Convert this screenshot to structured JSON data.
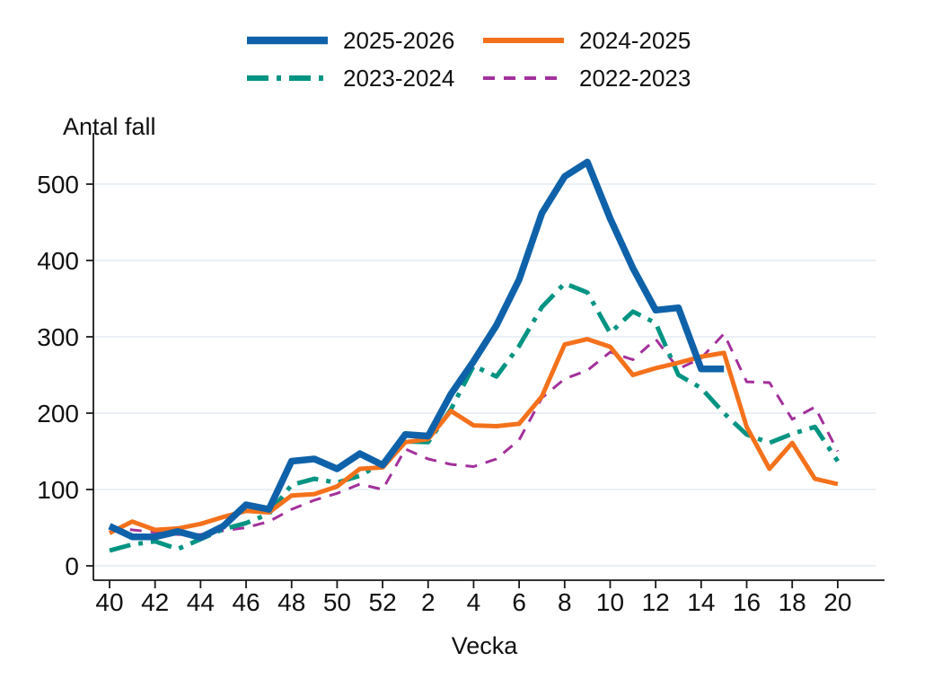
{
  "chart_data": {
    "type": "line",
    "title": "",
    "ylabel": "Antal fall",
    "xlabel": "Vecka",
    "x_categories": [
      "40",
      "41",
      "42",
      "43",
      "44",
      "45",
      "46",
      "47",
      "48",
      "49",
      "50",
      "51",
      "52",
      "1",
      "2",
      "3",
      "4",
      "5",
      "6",
      "7",
      "8",
      "9",
      "10",
      "11",
      "12",
      "13",
      "14",
      "15",
      "16",
      "17",
      "18",
      "19",
      "20"
    ],
    "x_tick_indices": [
      0,
      2,
      4,
      6,
      8,
      10,
      12,
      14,
      16,
      18,
      20,
      22,
      24,
      26,
      28,
      30,
      32
    ],
    "x_tick_labels": [
      "40",
      "42",
      "44",
      "46",
      "48",
      "50",
      "52",
      "2",
      "4",
      "6",
      "8",
      "10",
      "12",
      "14",
      "16",
      "18",
      "20"
    ],
    "y_ticks": [
      0,
      100,
      200,
      300,
      400,
      500
    ],
    "ylim": [
      0,
      560
    ],
    "grid": "horizontal",
    "grid_color": "#e3ebf2",
    "axis_color": "#1a1a1a",
    "legend_position": "top-center",
    "series": [
      {
        "name": "2025-2026",
        "color": "#0f62a9",
        "line_style": "solid",
        "line_width": 7.5,
        "values": [
          52,
          38,
          38,
          45,
          37,
          52,
          80,
          74,
          137,
          140,
          127,
          147,
          132,
          172,
          170,
          225,
          268,
          315,
          375,
          462,
          510,
          529,
          455,
          390,
          335,
          338,
          258,
          258
        ]
      },
      {
        "name": "2024-2025",
        "color": "#f4711c",
        "line_style": "solid",
        "line_width": 5,
        "values": [
          43,
          58,
          47,
          49,
          55,
          64,
          72,
          70,
          92,
          94,
          104,
          127,
          129,
          162,
          166,
          203,
          184,
          183,
          186,
          222,
          290,
          297,
          287,
          250,
          259,
          266,
          274,
          279,
          182,
          127,
          161,
          114,
          107
        ]
      },
      {
        "name": "2023-2024",
        "color": "#029482",
        "line_style": "dash-dot",
        "line_width": 5,
        "values": [
          20,
          28,
          32,
          22,
          35,
          48,
          56,
          68,
          106,
          114,
          109,
          118,
          135,
          163,
          162,
          205,
          262,
          248,
          288,
          339,
          370,
          358,
          305,
          333,
          318,
          250,
          233,
          200,
          172,
          161,
          173,
          182,
          137
        ]
      },
      {
        "name": "2022-2023",
        "color": "#a3309b",
        "line_style": "dashed",
        "line_width": 3,
        "values": [
          51,
          47,
          44,
          41,
          41,
          46,
          50,
          58,
          74,
          86,
          95,
          107,
          100,
          153,
          140,
          133,
          130,
          140,
          165,
          220,
          245,
          256,
          280,
          270,
          297,
          258,
          272,
          304,
          241,
          240,
          192,
          208,
          150
        ]
      }
    ]
  }
}
